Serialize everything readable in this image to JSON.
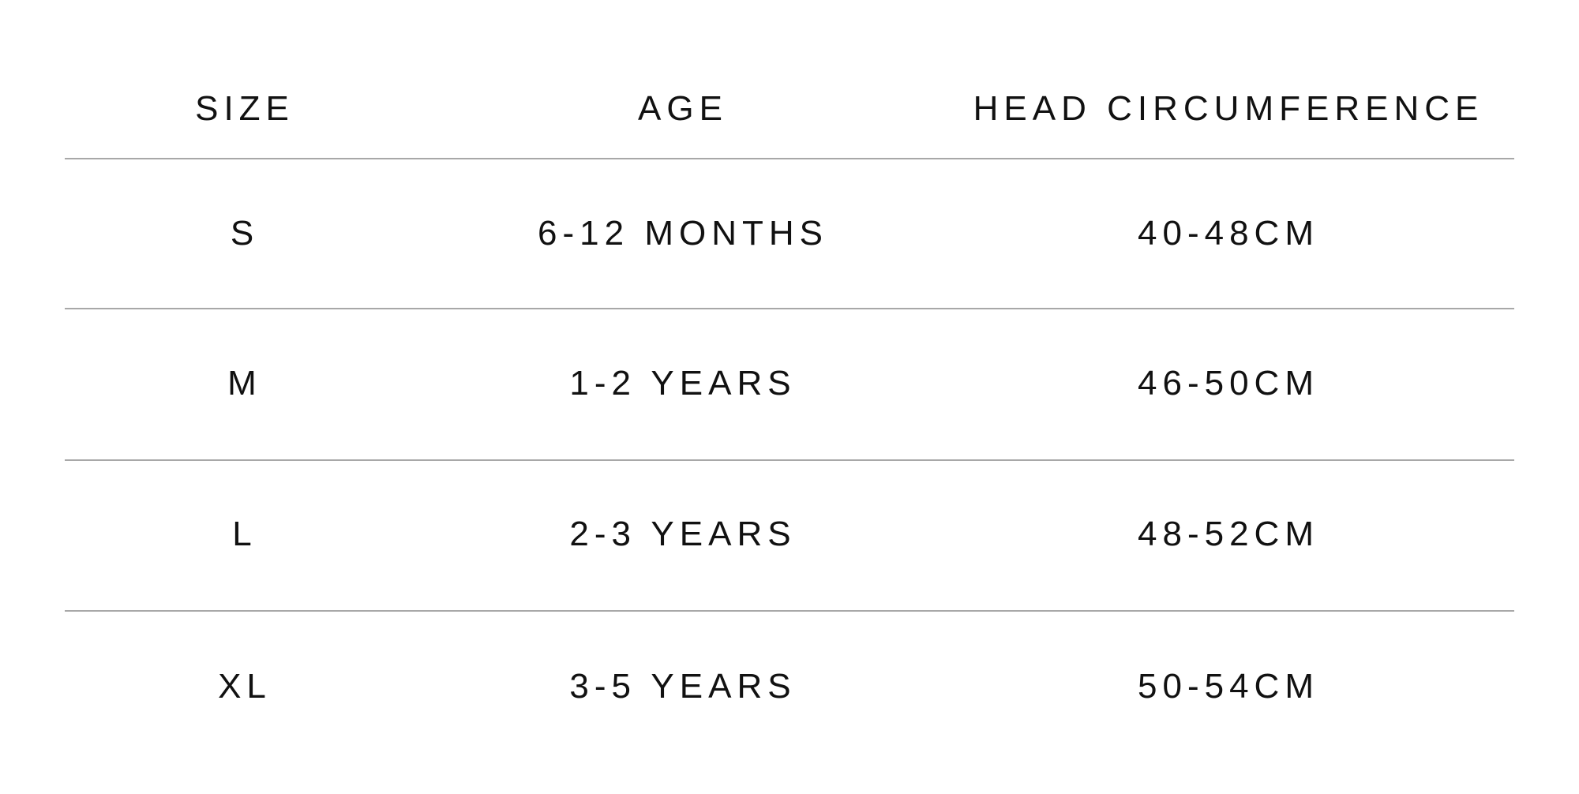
{
  "table": {
    "headers": [
      "SIZE",
      "AGE",
      "HEAD CIRCUMFERENCE"
    ],
    "rows": [
      [
        "S",
        "6-12 MONTHS",
        "40-48CM"
      ],
      [
        "M",
        "1-2 YEARS",
        "46-50CM"
      ],
      [
        "L",
        "2-3 YEARS",
        "48-52CM"
      ],
      [
        "XL",
        "3-5 YEARS",
        "50-54CM"
      ]
    ]
  }
}
